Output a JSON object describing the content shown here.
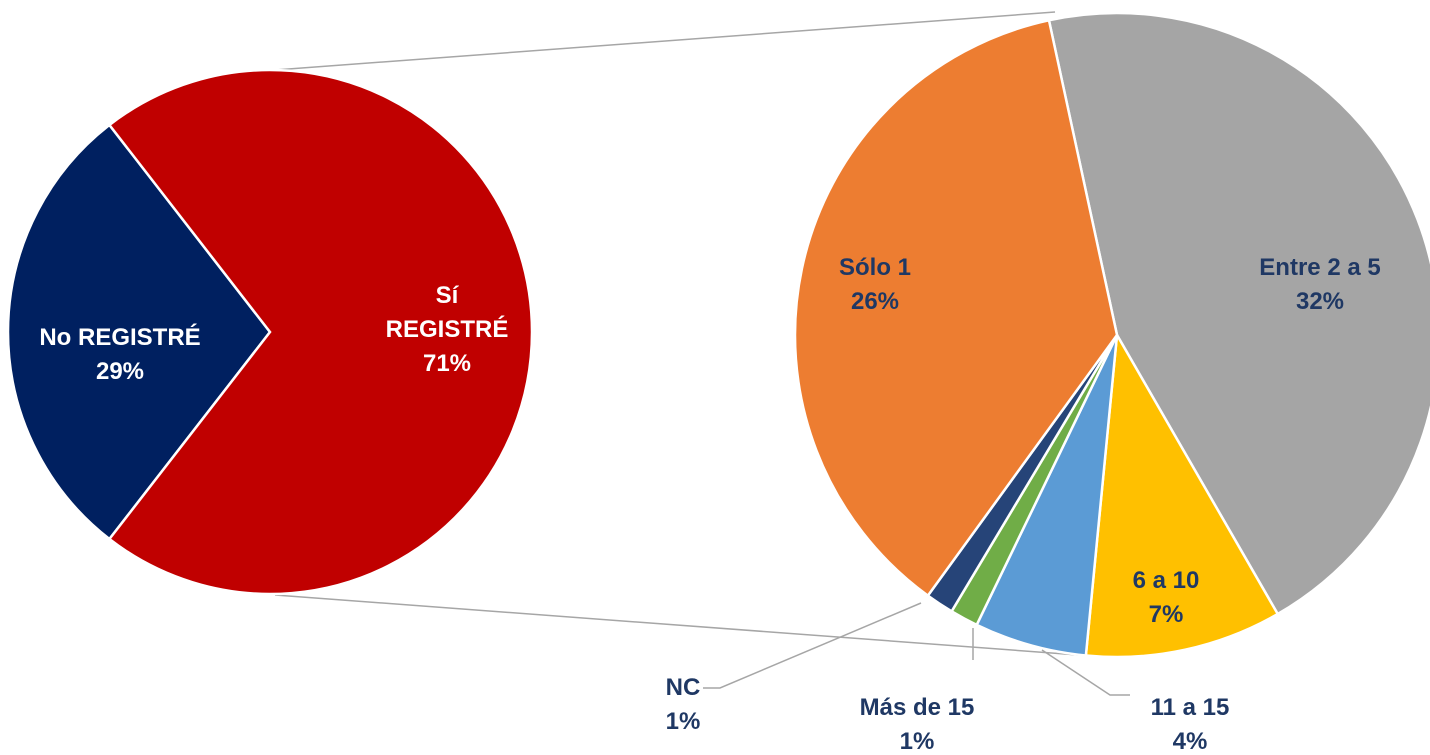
{
  "chart_data": [
    {
      "type": "pie",
      "categories": [
        "No REGISTRÉ",
        "Sí REGISTRÉ"
      ],
      "values": [
        29,
        71
      ],
      "value_labels": [
        "29%",
        "71%"
      ],
      "colors": [
        "#002060",
        "#c00000"
      ]
    },
    {
      "type": "pie",
      "categories": [
        "Entre 2 a 5",
        "6 a 10",
        "11 a 15",
        "Más de 15",
        "NC",
        "Sólo 1"
      ],
      "values": [
        32,
        7,
        4,
        1,
        1,
        26
      ],
      "value_labels": [
        "32%",
        "7%",
        "4%",
        "1%",
        "1%",
        "26%"
      ],
      "colors": [
        "#a5a5a5",
        "#ffc000",
        "#5b9bd5",
        "#70ad47",
        "#264478",
        "#ed7d31"
      ]
    }
  ]
}
